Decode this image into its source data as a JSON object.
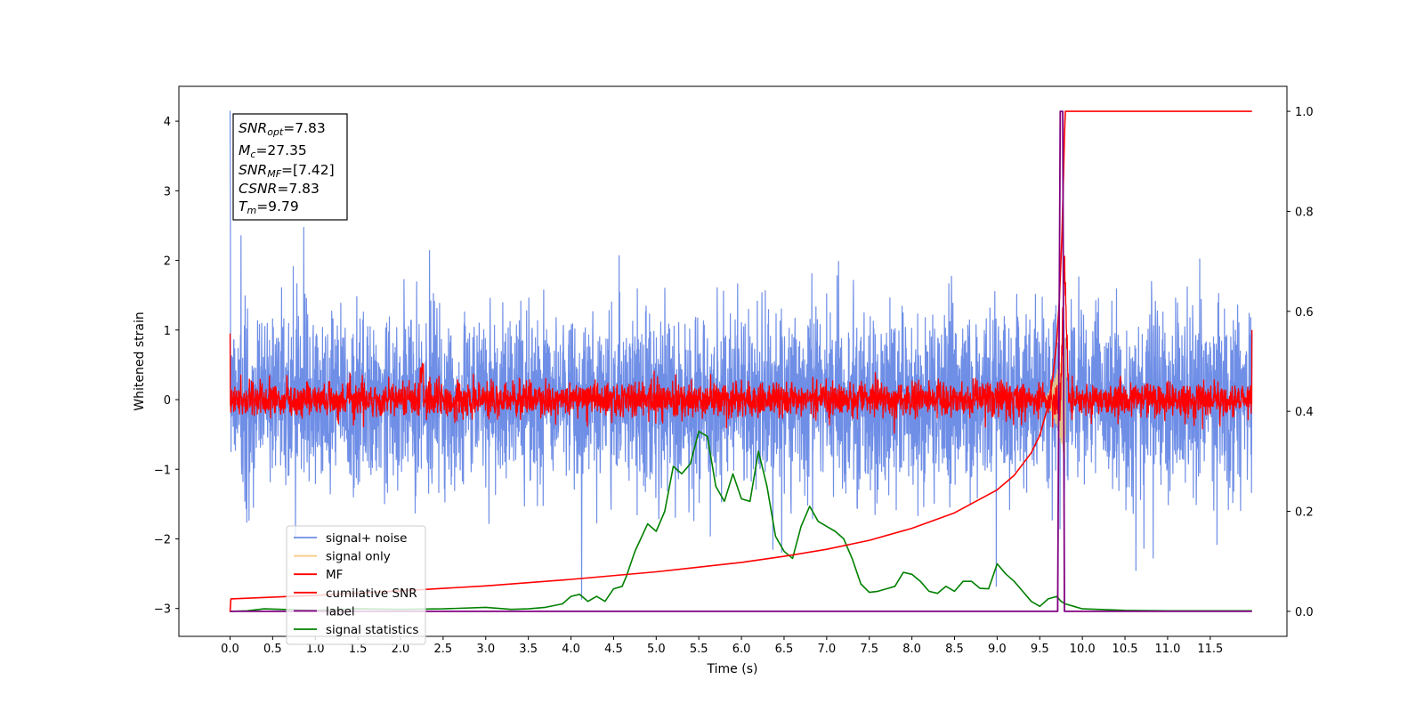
{
  "chart_data": {
    "type": "line",
    "title": "",
    "xlabel": "Time (s)",
    "ylabel": "Whitened strain",
    "xlim": [
      -0.6,
      12.4
    ],
    "ylim": [
      -3.4,
      4.5
    ],
    "y2lim": [
      -0.05,
      1.05
    ],
    "xticks": [
      "0.0",
      "0.5",
      "1.0",
      "1.5",
      "2.0",
      "2.5",
      "3.0",
      "3.5",
      "4.0",
      "4.5",
      "5.0",
      "5.5",
      "6.0",
      "6.5",
      "7.0",
      "7.5",
      "8.0",
      "8.5",
      "9.0",
      "9.5",
      "10.0",
      "10.5",
      "11.0",
      "11.5"
    ],
    "yticks_left": [
      "−3",
      "−2",
      "−1",
      "0",
      "1",
      "2",
      "3",
      "4"
    ],
    "yticks_right": [
      "0.0",
      "0.2",
      "0.4",
      "0.6",
      "0.8",
      "1.0"
    ],
    "grid": false,
    "legend_position": "lower-left",
    "annotation": {
      "snr_opt": {
        "base": "SNR",
        "sub": "opt",
        "value": "=7.83"
      },
      "mc": {
        "base": "M",
        "sub": "c",
        "value": "=27.35"
      },
      "snr_mf": {
        "base": "SNR",
        "sub": "MF",
        "value": "=[7.42]"
      },
      "csnr": {
        "base": "CSNR",
        "value": "=7.83"
      },
      "tm": {
        "base": "T",
        "sub": "m",
        "value": "=9.79"
      }
    },
    "series": [
      {
        "name": "signal+ noise",
        "color": "#6f8ee6",
        "axis": "left",
        "kind": "noise",
        "x_range": [
          0,
          11.99
        ],
        "sigma": 0.62,
        "merger_time": 9.79
      },
      {
        "name": "signal only",
        "color": "#f7c97a",
        "axis": "left",
        "kind": "chirp",
        "x_range": [
          9.5,
          9.8
        ],
        "peak_amplitude": 0.9
      },
      {
        "name": "MF",
        "color": "#ff0000",
        "axis": "left",
        "kind": "noise",
        "x_range": [
          0,
          11.99
        ],
        "sigma": 0.12,
        "start_value": 0.95,
        "end_value": 1.0,
        "peak": {
          "x": 9.79,
          "y": 2.0
        }
      },
      {
        "name": "cumilative SNR",
        "color": "#ff0000",
        "axis": "right",
        "x": [
          0.0,
          0.01,
          1.0,
          2.0,
          3.0,
          4.0,
          5.0,
          6.0,
          6.5,
          7.0,
          7.5,
          8.0,
          8.5,
          9.0,
          9.2,
          9.4,
          9.5,
          9.6,
          9.65,
          9.7,
          9.73,
          9.76,
          9.78,
          9.79,
          9.8,
          10.0,
          11.0,
          11.99
        ],
        "values": [
          -0.001,
          0.025,
          0.032,
          0.041,
          0.051,
          0.064,
          0.079,
          0.098,
          0.11,
          0.124,
          0.142,
          0.166,
          0.197,
          0.243,
          0.272,
          0.317,
          0.352,
          0.412,
          0.462,
          0.542,
          0.622,
          0.752,
          0.882,
          0.95,
          1.0,
          1.0,
          1.0,
          1.0
        ]
      },
      {
        "name": "label",
        "color": "#800080",
        "axis": "right",
        "x": [
          0.0,
          9.71,
          9.74,
          9.77,
          9.79,
          11.99
        ],
        "values": [
          0.0,
          0.0,
          1.0,
          1.0,
          0.0,
          0.0
        ]
      },
      {
        "name": "signal statistics",
        "color": "#008000",
        "axis": "right",
        "x": [
          0.0,
          0.2,
          0.4,
          0.6,
          0.8,
          1.0,
          1.5,
          2.0,
          2.5,
          3.0,
          3.3,
          3.5,
          3.7,
          3.9,
          4.0,
          4.1,
          4.2,
          4.3,
          4.4,
          4.5,
          4.6,
          4.65,
          4.75,
          4.9,
          5.0,
          5.1,
          5.2,
          5.3,
          5.4,
          5.5,
          5.6,
          5.7,
          5.8,
          5.9,
          6.0,
          6.1,
          6.2,
          6.3,
          6.4,
          6.5,
          6.6,
          6.7,
          6.8,
          6.9,
          7.0,
          7.1,
          7.2,
          7.3,
          7.4,
          7.5,
          7.6,
          7.7,
          7.8,
          7.9,
          8.0,
          8.1,
          8.2,
          8.3,
          8.4,
          8.5,
          8.6,
          8.7,
          8.8,
          8.9,
          9.0,
          9.1,
          9.2,
          9.3,
          9.4,
          9.5,
          9.6,
          9.7,
          9.75,
          9.8,
          9.9,
          10.0,
          10.5,
          11.0,
          11.99
        ],
        "values": [
          0.0,
          0.001,
          0.005,
          0.004,
          0.003,
          0.002,
          0.005,
          0.004,
          0.005,
          0.008,
          0.004,
          0.005,
          0.008,
          0.015,
          0.03,
          0.034,
          0.02,
          0.03,
          0.02,
          0.045,
          0.05,
          0.07,
          0.12,
          0.175,
          0.16,
          0.2,
          0.29,
          0.275,
          0.295,
          0.36,
          0.35,
          0.25,
          0.22,
          0.275,
          0.225,
          0.22,
          0.32,
          0.25,
          0.15,
          0.12,
          0.106,
          0.17,
          0.21,
          0.18,
          0.17,
          0.16,
          0.145,
          0.105,
          0.055,
          0.038,
          0.04,
          0.045,
          0.05,
          0.078,
          0.074,
          0.06,
          0.04,
          0.036,
          0.05,
          0.04,
          0.06,
          0.06,
          0.046,
          0.045,
          0.095,
          0.075,
          0.06,
          0.04,
          0.02,
          0.01,
          0.025,
          0.03,
          0.02,
          0.015,
          0.01,
          0.005,
          0.002,
          0.001,
          0.001
        ]
      }
    ]
  }
}
